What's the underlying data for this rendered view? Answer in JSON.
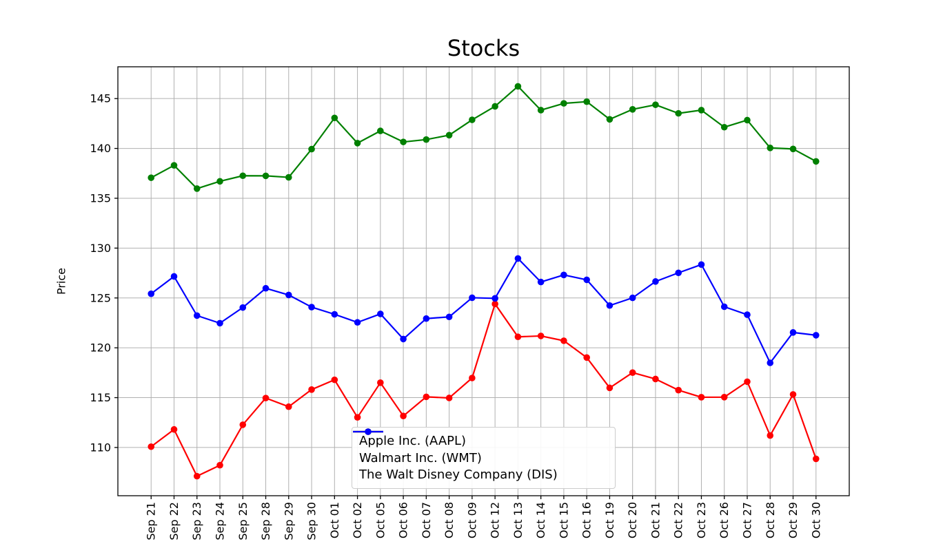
{
  "chart_data": {
    "type": "line",
    "title": "Stocks",
    "xlabel": "",
    "ylabel": "Price",
    "grid": true,
    "legend_position": "lower-center",
    "categories": [
      "Sep 21",
      "Sep 22",
      "Sep 23",
      "Sep 24",
      "Sep 25",
      "Sep 28",
      "Sep 29",
      "Sep 30",
      "Oct 01",
      "Oct 02",
      "Oct 05",
      "Oct 06",
      "Oct 07",
      "Oct 08",
      "Oct 09",
      "Oct 12",
      "Oct 13",
      "Oct 14",
      "Oct 15",
      "Oct 16",
      "Oct 19",
      "Oct 20",
      "Oct 21",
      "Oct 22",
      "Oct 23",
      "Oct 26",
      "Oct 27",
      "Oct 28",
      "Oct 29",
      "Oct 30"
    ],
    "yticks": [
      110,
      115,
      120,
      125,
      130,
      135,
      140,
      145
    ],
    "ylim": [
      105.16,
      148.19
    ],
    "x_pad": 1.45,
    "series": [
      {
        "name": "Apple Inc. (AAPL)",
        "color": "#ff0000",
        "values": [
          110.08,
          111.81,
          107.12,
          108.22,
          112.28,
          114.96,
          114.09,
          115.81,
          116.79,
          113.02,
          116.5,
          113.16,
          115.08,
          114.97,
          116.97,
          124.4,
          121.1,
          121.19,
          120.71,
          119.02,
          115.98,
          117.51,
          116.87,
          115.75,
          115.04,
          115.05,
          116.6,
          111.2,
          115.32,
          108.86
        ]
      },
      {
        "name": "Walmart Inc. (WMT)",
        "color": "#008000",
        "values": [
          137.06,
          138.3,
          135.97,
          136.7,
          137.26,
          137.25,
          137.1,
          139.93,
          143.06,
          140.53,
          141.76,
          140.65,
          140.89,
          141.33,
          142.87,
          144.22,
          146.23,
          143.84,
          144.52,
          144.69,
          142.92,
          143.92,
          144.38,
          143.52,
          143.84,
          142.13,
          142.84,
          140.05,
          139.95,
          138.7
        ]
      },
      {
        "name": "The Walt Disney Company (DIS)",
        "color": "#0000ff",
        "values": [
          125.42,
          127.16,
          123.23,
          122.47,
          124.04,
          125.97,
          125.3,
          124.08,
          123.36,
          122.55,
          123.4,
          120.88,
          122.93,
          123.1,
          125.02,
          124.96,
          128.96,
          126.6,
          127.31,
          126.82,
          124.24,
          125.01,
          126.65,
          127.52,
          128.35,
          124.12,
          123.32,
          118.49,
          121.54,
          121.26
        ]
      }
    ]
  },
  "colors": {
    "grid": "#b0b0b0",
    "axis": "#000000",
    "background": "#ffffff",
    "legend_border": "#cccccc"
  }
}
